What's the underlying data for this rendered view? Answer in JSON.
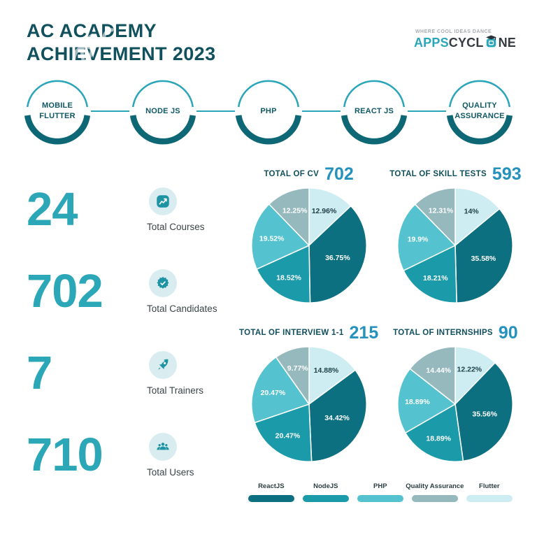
{
  "header": {
    "title_line1": "AC ACADEMY",
    "title_line2": "ACHIEVEMENT 2023"
  },
  "logo": {
    "tagline": "WHERE COOL IDEAS DANCE",
    "brand_part1": "APPS",
    "brand_part2": "CYCL",
    "brand_part3": "NE"
  },
  "badges": [
    {
      "line1": "MOBILE",
      "line2": "FLUTTER"
    },
    {
      "line1": "NODE JS",
      "line2": ""
    },
    {
      "line1": "PHP",
      "line2": ""
    },
    {
      "line1": "REACT JS",
      "line2": ""
    },
    {
      "line1": "QUALITY",
      "line2": "ASSURANCE"
    }
  ],
  "stats": [
    {
      "value": "24",
      "label": "Total Courses",
      "icon": "chart-up-icon"
    },
    {
      "value": "702",
      "label": "Total Candidates",
      "icon": "badge-check-icon"
    },
    {
      "value": "7",
      "label": "Total Trainers",
      "icon": "rocket-icon"
    },
    {
      "value": "710",
      "label": "Total Users",
      "icon": "users-icon"
    }
  ],
  "chart_data": {
    "type": "pie",
    "legend_position": "bottom",
    "legend": [
      "ReactJS",
      "NodeJS",
      "PHP",
      "Quality Assurance",
      "Flutter"
    ],
    "palette": {
      "ReactJS": "#0d7080",
      "NodeJS": "#1b9aa9",
      "PHP": "#55c3cf",
      "Quality Assurance": "#96b9be",
      "Flutter": "#cdedf2"
    },
    "charts": [
      {
        "title": "TOTAL OF CV",
        "total": "702",
        "slices": [
          {
            "label": "Flutter",
            "value": 12.96,
            "text": "12.96%"
          },
          {
            "label": "ReactJS",
            "value": 36.75,
            "text": "36.75%"
          },
          {
            "label": "NodeJS",
            "value": 18.52,
            "text": "18.52%"
          },
          {
            "label": "PHP",
            "value": 19.52,
            "text": "19.52%"
          },
          {
            "label": "Quality Assurance",
            "value": 12.25,
            "text": "12.25%"
          }
        ]
      },
      {
        "title": "TOTAL OF SKILL TESTS",
        "total": "593",
        "slices": [
          {
            "label": "Flutter",
            "value": 14.0,
            "text": "14%"
          },
          {
            "label": "ReactJS",
            "value": 35.58,
            "text": "35.58%"
          },
          {
            "label": "NodeJS",
            "value": 18.21,
            "text": "18.21%"
          },
          {
            "label": "PHP",
            "value": 19.9,
            "text": "19.9%"
          },
          {
            "label": "Quality Assurance",
            "value": 12.31,
            "text": "12.31%"
          }
        ]
      },
      {
        "title": "TOTAL OF INTERVIEW 1-1",
        "total": "215",
        "slices": [
          {
            "label": "Flutter",
            "value": 14.88,
            "text": "14.88%"
          },
          {
            "label": "ReactJS",
            "value": 34.42,
            "text": "34.42%"
          },
          {
            "label": "NodeJS",
            "value": 20.47,
            "text": "20.47%"
          },
          {
            "label": "PHP",
            "value": 20.47,
            "text": "20.47%"
          },
          {
            "label": "Quality Assurance",
            "value": 9.77,
            "text": "9.77%"
          }
        ]
      },
      {
        "title": "TOTAL OF INTERNSHIPS",
        "total": "90",
        "slices": [
          {
            "label": "Flutter",
            "value": 12.22,
            "text": "12.22%"
          },
          {
            "label": "ReactJS",
            "value": 35.56,
            "text": "35.56%"
          },
          {
            "label": "NodeJS",
            "value": 18.89,
            "text": "18.89%"
          },
          {
            "label": "PHP",
            "value": 18.89,
            "text": "18.89%"
          },
          {
            "label": "Quality Assurance",
            "value": 14.44,
            "text": "14.44%"
          }
        ]
      }
    ]
  },
  "colors": {
    "title_teal": "#11505d",
    "stat_number": "#2ba7b7",
    "chart_total_blue": "#2492bd",
    "badge_ring_dark": "#0e6775",
    "badge_ring_light": "#2aa6b8",
    "icon_circle_bg": "#d9edf1",
    "icon_glyph": "#1d93a4",
    "brand_teal": "#29a7ba",
    "brand_dark": "#363b40",
    "slice_label_light": "#ffffff",
    "slice_label_dark": "#20424a"
  }
}
